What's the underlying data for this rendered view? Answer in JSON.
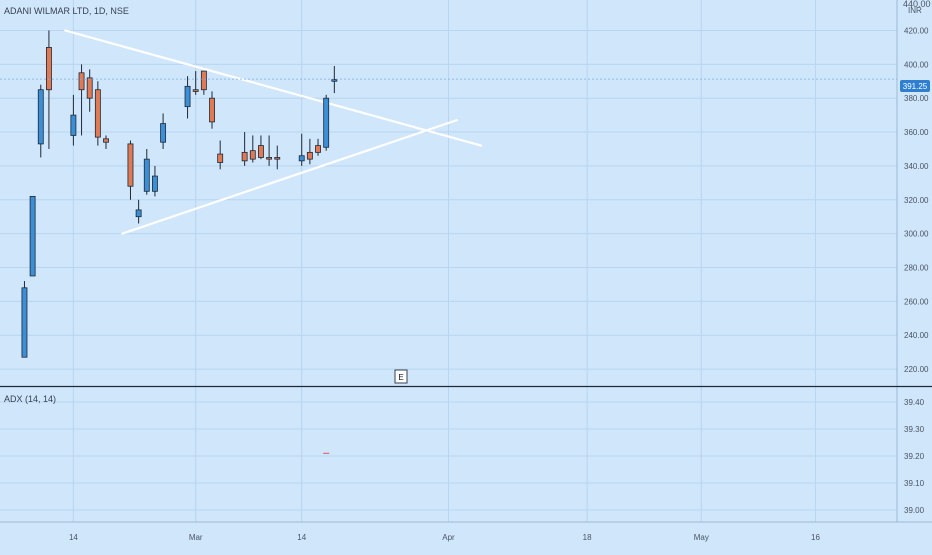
{
  "header": {
    "symbol_label": "ADANI WILMAR LTD, 1D, NSE",
    "currency": "INR",
    "top_clipped_price": "440.00"
  },
  "colors": {
    "background": "#cfe6fb",
    "grid": "#b9d5ef",
    "up": "#3a8fd6",
    "down": "#e07a55",
    "trendline": "#ffffff",
    "axis_text": "#4b5563",
    "price_label_bg": "#2f7fd0",
    "price_label_text": "#ffffff",
    "separator": "#1f2937"
  },
  "earnings_marker": {
    "label": "E",
    "date": "2022-02-14"
  },
  "indicator": {
    "label": "ADX (14, 14)",
    "y_ticks": [
      "39.40",
      "39.30",
      "39.20",
      "39.10",
      "39.00"
    ],
    "value": 39.21,
    "value_date": "2022-03-17"
  },
  "chart_data": {
    "type": "candlestick",
    "title": "ADANI WILMAR LTD, 1D, NSE",
    "ylim": [
      210,
      438
    ],
    "xlim": [
      "2022-02-05",
      "2022-05-26"
    ],
    "x_ticks": [
      {
        "label": "14",
        "date": "2022-02-14"
      },
      {
        "label": "Mar",
        "date": "2022-03-01"
      },
      {
        "label": "14",
        "date": "2022-03-14"
      },
      {
        "label": "Apr",
        "date": "2022-04-01"
      },
      {
        "label": "18",
        "date": "2022-04-18"
      },
      {
        "label": "May",
        "date": "2022-05-02"
      },
      {
        "label": "16",
        "date": "2022-05-16"
      }
    ],
    "y_ticks": [
      420,
      400,
      380,
      360,
      340,
      320,
      300,
      280,
      260,
      240,
      220
    ],
    "last_price": 391.25,
    "last_price_label": "391.25",
    "candles": [
      {
        "date": "2022-02-08",
        "open": 227,
        "high": 272,
        "low": 227,
        "close": 268
      },
      {
        "date": "2022-02-09",
        "open": 275,
        "high": 322,
        "low": 275,
        "close": 322
      },
      {
        "date": "2022-02-10",
        "open": 353,
        "high": 388,
        "low": 345,
        "close": 385
      },
      {
        "date": "2022-02-11",
        "open": 410,
        "high": 420,
        "low": 350,
        "close": 385
      },
      {
        "date": "2022-02-14",
        "open": 358,
        "high": 382,
        "low": 352,
        "close": 370
      },
      {
        "date": "2022-02-15",
        "open": 395,
        "high": 400,
        "low": 358,
        "close": 385
      },
      {
        "date": "2022-02-16",
        "open": 392,
        "high": 397,
        "low": 372,
        "close": 380
      },
      {
        "date": "2022-02-17",
        "open": 385,
        "high": 390,
        "low": 352,
        "close": 357
      },
      {
        "date": "2022-02-18",
        "open": 356,
        "high": 358,
        "low": 350,
        "close": 354
      },
      {
        "date": "2022-02-21",
        "open": 353,
        "high": 355,
        "low": 320,
        "close": 328
      },
      {
        "date": "2022-02-22",
        "open": 310,
        "high": 320,
        "low": 306,
        "close": 314
      },
      {
        "date": "2022-02-23",
        "open": 325,
        "high": 350,
        "low": 323,
        "close": 344
      },
      {
        "date": "2022-02-24",
        "open": 325,
        "high": 340,
        "low": 322,
        "close": 334
      },
      {
        "date": "2022-02-25",
        "open": 354,
        "high": 371,
        "low": 350,
        "close": 365
      },
      {
        "date": "2022-02-28",
        "open": 375,
        "high": 393,
        "low": 368,
        "close": 387
      },
      {
        "date": "2022-03-01",
        "open": 385,
        "high": 396,
        "low": 382,
        "close": 384
      },
      {
        "date": "2022-03-02",
        "open": 396,
        "high": 396,
        "low": 382,
        "close": 385
      },
      {
        "date": "2022-03-03",
        "open": 380,
        "high": 384,
        "low": 362,
        "close": 366
      },
      {
        "date": "2022-03-04",
        "open": 347,
        "high": 355,
        "low": 338,
        "close": 342
      },
      {
        "date": "2022-03-07",
        "open": 348,
        "high": 360,
        "low": 340,
        "close": 343
      },
      {
        "date": "2022-03-08",
        "open": 349,
        "high": 358,
        "low": 342,
        "close": 344
      },
      {
        "date": "2022-03-09",
        "open": 352,
        "high": 358,
        "low": 344,
        "close": 345
      },
      {
        "date": "2022-03-10",
        "open": 345,
        "high": 358,
        "low": 340,
        "close": 344
      },
      {
        "date": "2022-03-11",
        "open": 345,
        "high": 352,
        "low": 338,
        "close": 344
      },
      {
        "date": "2022-03-14",
        "open": 343,
        "high": 359,
        "low": 340,
        "close": 346
      },
      {
        "date": "2022-03-15",
        "open": 348,
        "high": 356,
        "low": 341,
        "close": 344
      },
      {
        "date": "2022-03-16",
        "open": 352,
        "high": 356,
        "low": 346,
        "close": 348
      },
      {
        "date": "2022-03-17",
        "open": 351,
        "high": 382,
        "low": 349,
        "close": 380
      },
      {
        "date": "2022-03-18",
        "open": 390,
        "high": 399,
        "low": 383,
        "close": 391
      }
    ],
    "trendlines": [
      {
        "name": "upper",
        "from": {
          "date": "2022-02-13",
          "price": 420
        },
        "to": {
          "date": "2022-04-05",
          "price": 352
        }
      },
      {
        "name": "lower",
        "from": {
          "date": "2022-02-20",
          "price": 300
        },
        "to": {
          "date": "2022-04-02",
          "price": 367
        }
      }
    ]
  }
}
